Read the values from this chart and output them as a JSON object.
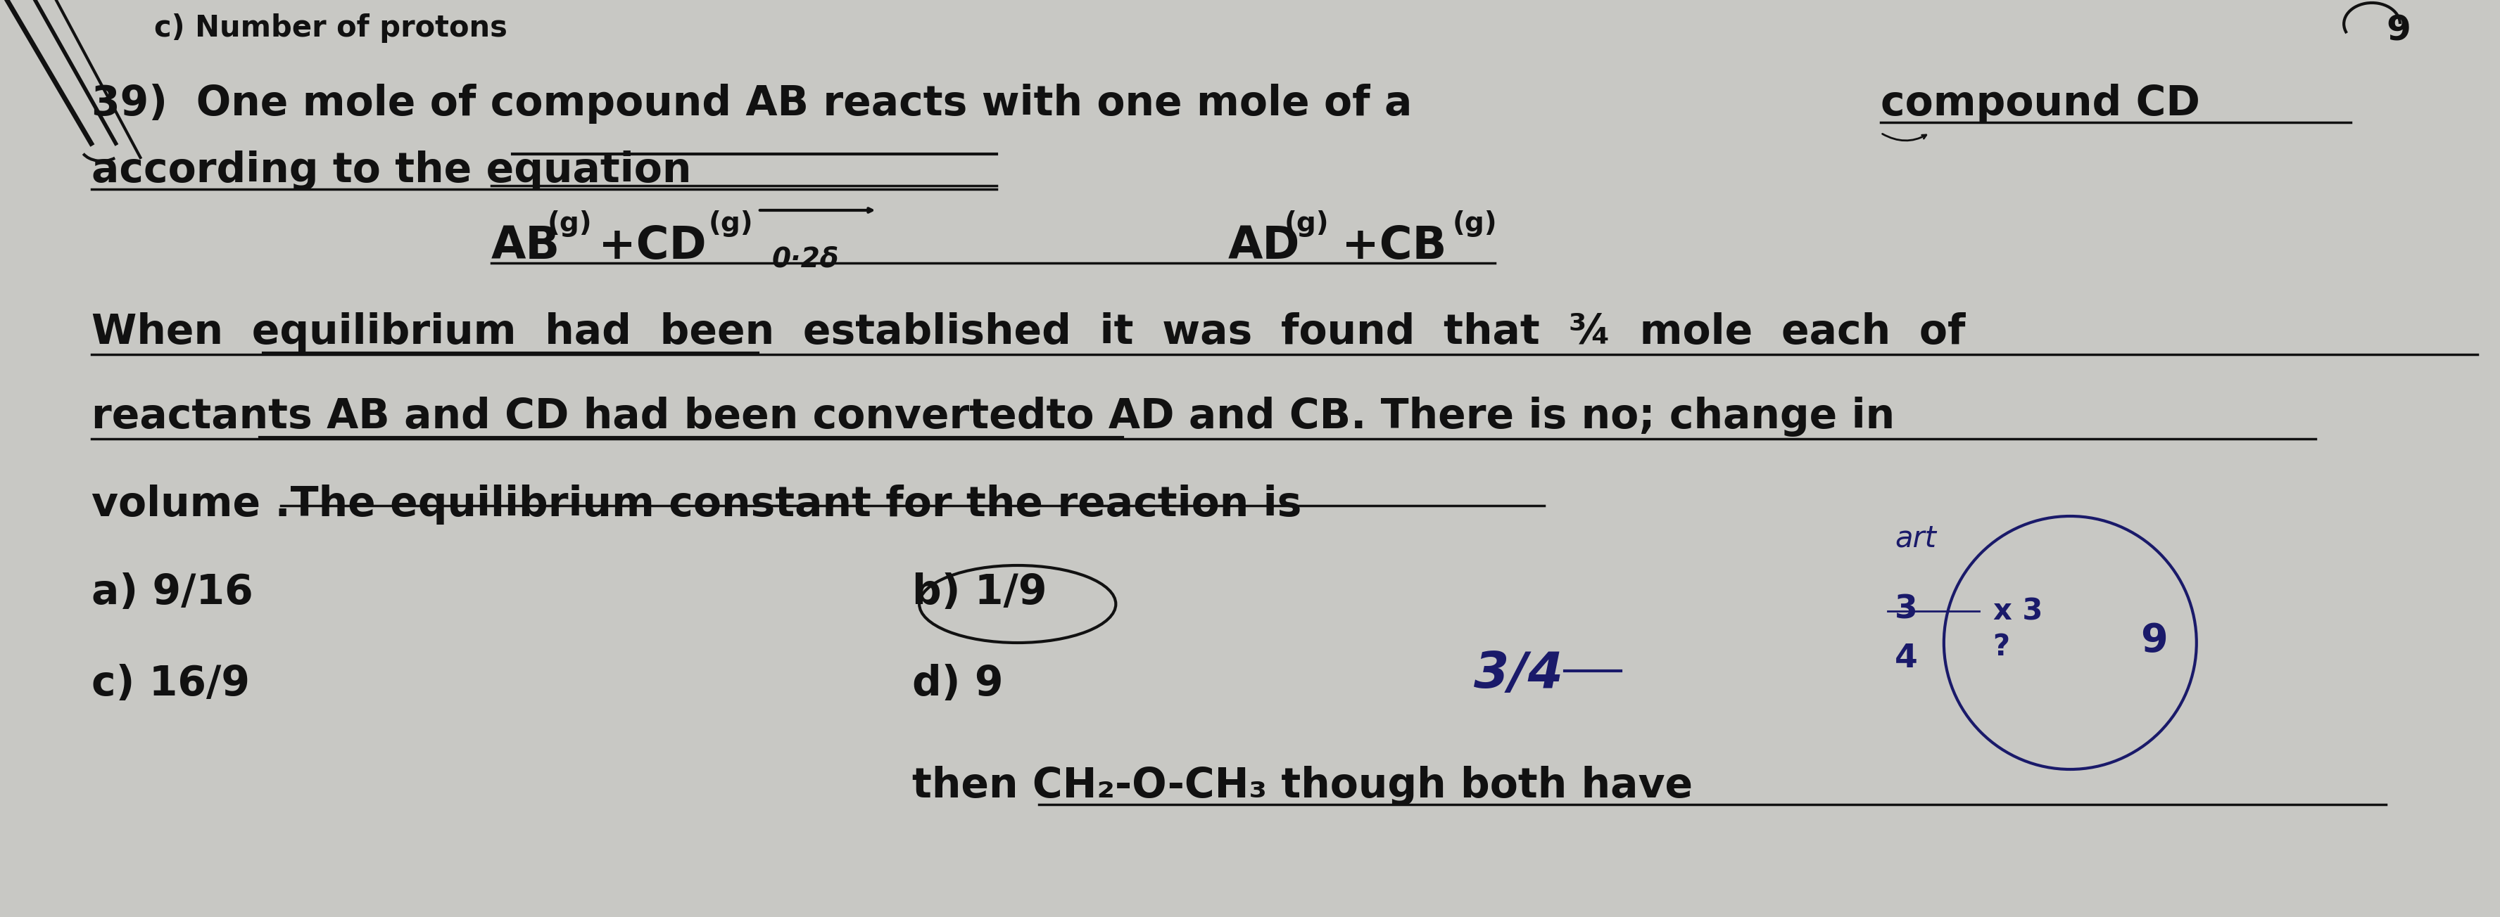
{
  "background_color": "#c8c8c4",
  "text_color": "#111111",
  "top_text": "c) Number of protons",
  "q39_line1a": "39)  One mole of compound AB reacts with one mole of a",
  "q39_line1b": "compound CD",
  "line2": "according to the equation",
  "eq_left": "AB",
  "eq_left_sub": "(g)",
  "eq_plus_cd": " +CD",
  "eq_cd_sub": "(g)",
  "arrow_text": "→",
  "superscript": "0·2δ",
  "eq_right_ad": "AD",
  "eq_ad_sub": "(g)",
  "eq_plus_cb": "+CB",
  "eq_cb_sub": "(g)",
  "line3": "When equilibrium had been established it was found that ¾ mole each of",
  "line4": "reactants AB and CD had been convertedto AD and CB. There is no; change in",
  "line5": "volume .The equilibrium constant for the reaction is",
  "opt_a": "a) 9/16",
  "opt_b": "b) 1/9",
  "opt_c": "c) 16/9",
  "opt_d": "d) 9",
  "answer": "3/4",
  "bottom_line": "then CH₂-O-CH₃ though both have",
  "font_size": 42,
  "font_size_small": 30,
  "font_size_sub": 28
}
